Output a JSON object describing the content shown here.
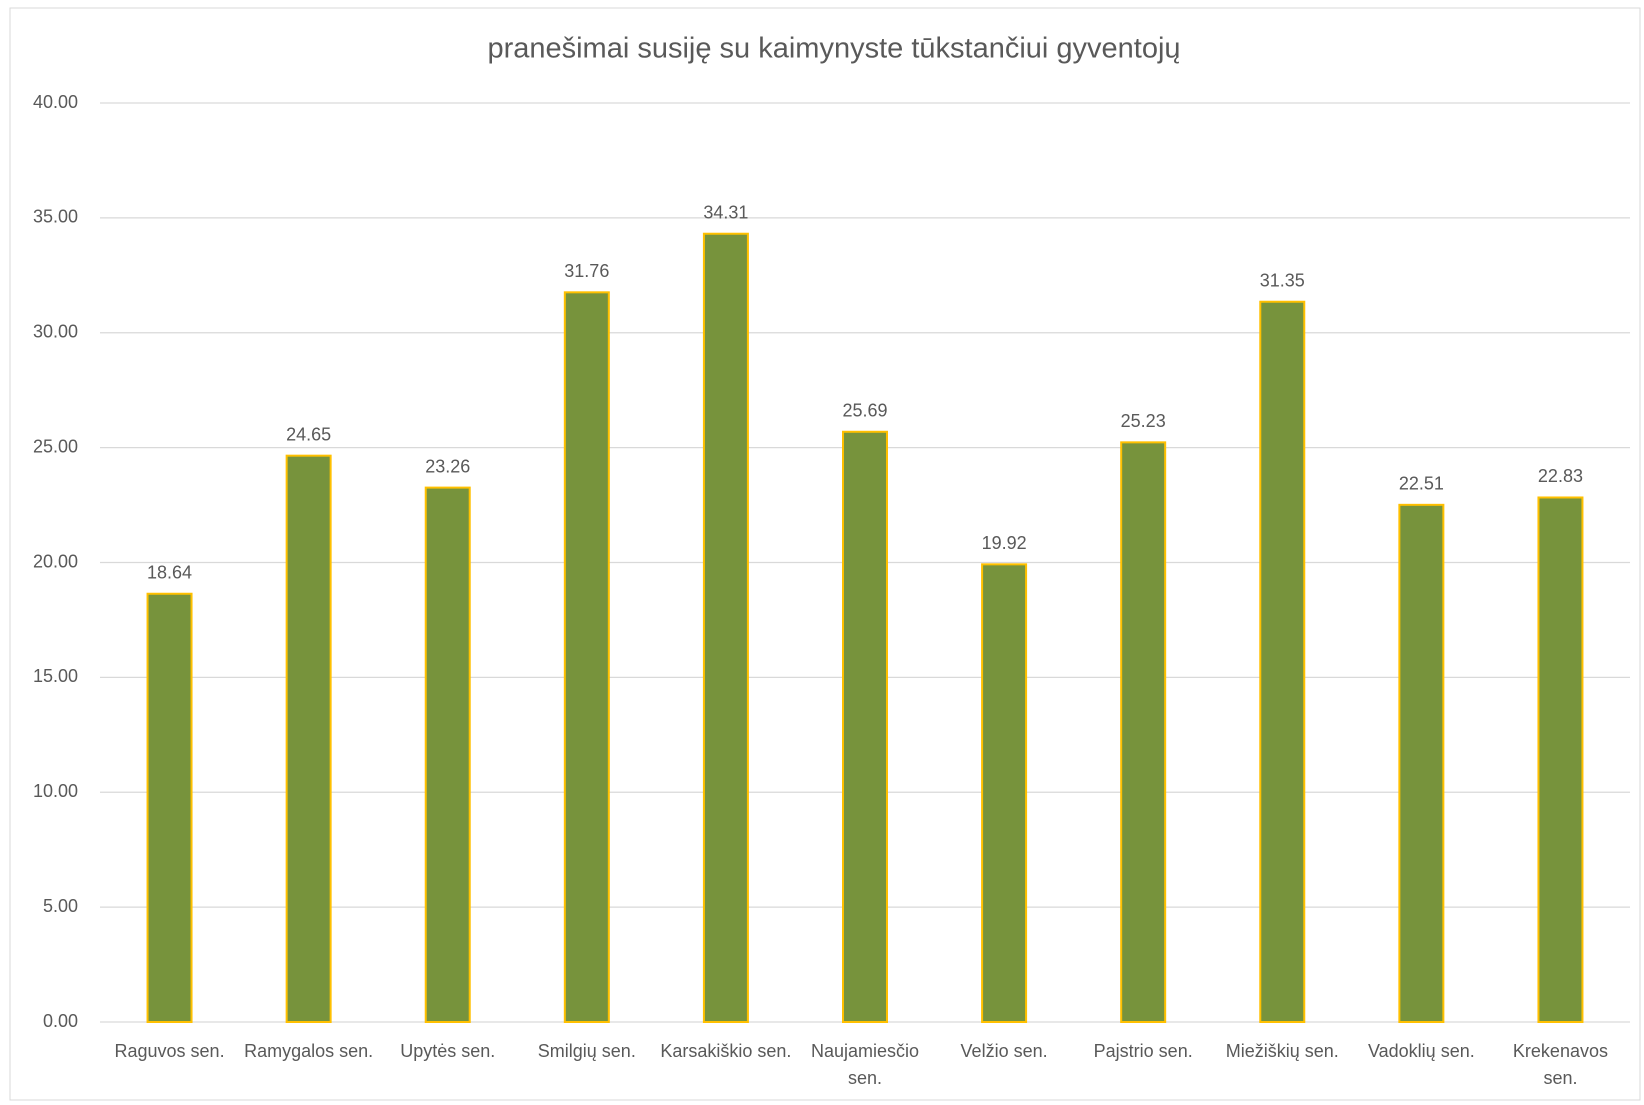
{
  "chart_data": {
    "type": "bar",
    "title": "pranešimai susiję su kaimynyste tūkstančiui gyventojų",
    "categories": [
      "Raguvos sen.",
      "Ramygalos sen.",
      "Upytės sen.",
      "Smilgių sen.",
      "Karsakiškio sen.",
      "Naujamiesčio sen.",
      "Velžio sen.",
      "Pajstrio sen.",
      "Miežiškių sen.",
      "Vadoklių sen.",
      "Krekenavos sen."
    ],
    "values": [
      18.64,
      24.65,
      23.26,
      31.76,
      34.31,
      25.69,
      19.92,
      25.23,
      31.35,
      22.51,
      22.83
    ],
    "color": "#77933c",
    "edge_color": "#ffc000",
    "ylim": [
      0,
      40
    ],
    "yticks": [
      {
        "value": 0,
        "label": "0.00"
      },
      {
        "value": 5,
        "label": "5.00"
      },
      {
        "value": 10,
        "label": "10.00"
      },
      {
        "value": 15,
        "label": "15.00"
      },
      {
        "value": 20,
        "label": "20.00"
      },
      {
        "value": 25,
        "label": "25.00"
      },
      {
        "value": 30,
        "label": "30.00"
      },
      {
        "value": 35,
        "label": "35.00"
      },
      {
        "value": 40,
        "label": "40.00"
      }
    ],
    "grid": true
  }
}
